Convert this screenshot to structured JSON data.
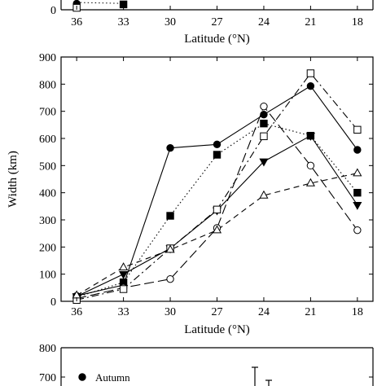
{
  "chart_data": [
    {
      "type": "line",
      "title": "",
      "xlabel": "Latitude (°N)",
      "ylabel": "",
      "x": [
        36,
        33,
        30,
        27,
        24,
        21,
        18
      ],
      "xlim": [
        37,
        17
      ],
      "ytick_labels_visible": [
        "0"
      ],
      "series": [
        {
          "marker": "filled-circle",
          "line_style": "dotted",
          "values": [
            25,
            null,
            null,
            null,
            null,
            null,
            null
          ]
        },
        {
          "marker": "filled-square",
          "line_style": "dotted",
          "values": [
            null,
            22,
            null,
            null,
            null,
            null,
            null
          ]
        }
      ]
    },
    {
      "type": "line",
      "title": "",
      "xlabel": "Latitude (°N)",
      "ylabel": "Width (km)",
      "x": [
        36,
        33,
        30,
        27,
        24,
        21,
        18
      ],
      "x_tick_labels": [
        "36",
        "33",
        "30",
        "27",
        "24",
        "21",
        "18"
      ],
      "xlim": [
        37,
        17
      ],
      "ylim": [
        0,
        900
      ],
      "yticks": [
        0,
        100,
        200,
        300,
        400,
        500,
        600,
        700,
        800,
        900
      ],
      "grid": false,
      "series": [
        {
          "marker": "filled-circle",
          "line_style": "solid",
          "values": [
            20,
            60,
            565,
            578,
            688,
            793,
            558
          ]
        },
        {
          "marker": "filled-square",
          "line_style": "dotted",
          "values": [
            15,
            70,
            315,
            540,
            655,
            610,
            400
          ]
        },
        {
          "marker": "filled-triangle-down",
          "line_style": "solid",
          "values": [
            18,
            100,
            195,
            335,
            515,
            610,
            355
          ]
        },
        {
          "marker": "open-circle",
          "line_style": "long-dash",
          "values": [
            10,
            50,
            82,
            270,
            718,
            500,
            262
          ]
        },
        {
          "marker": "open-square",
          "line_style": "dash-dot",
          "values": [
            5,
            45,
            195,
            338,
            608,
            840,
            632
          ]
        },
        {
          "marker": "open-triangle-up",
          "line_style": "dash",
          "values": [
            22,
            125,
            190,
            262,
            390,
            435,
            472
          ]
        }
      ]
    },
    {
      "type": "bar",
      "title": "",
      "xlabel": "",
      "ylabel": "",
      "ylim_visible": [
        700,
        800
      ],
      "yticks_visible": [
        700,
        800
      ],
      "legend": [
        {
          "marker": "filled-circle",
          "label": "Autumn"
        }
      ]
    }
  ]
}
